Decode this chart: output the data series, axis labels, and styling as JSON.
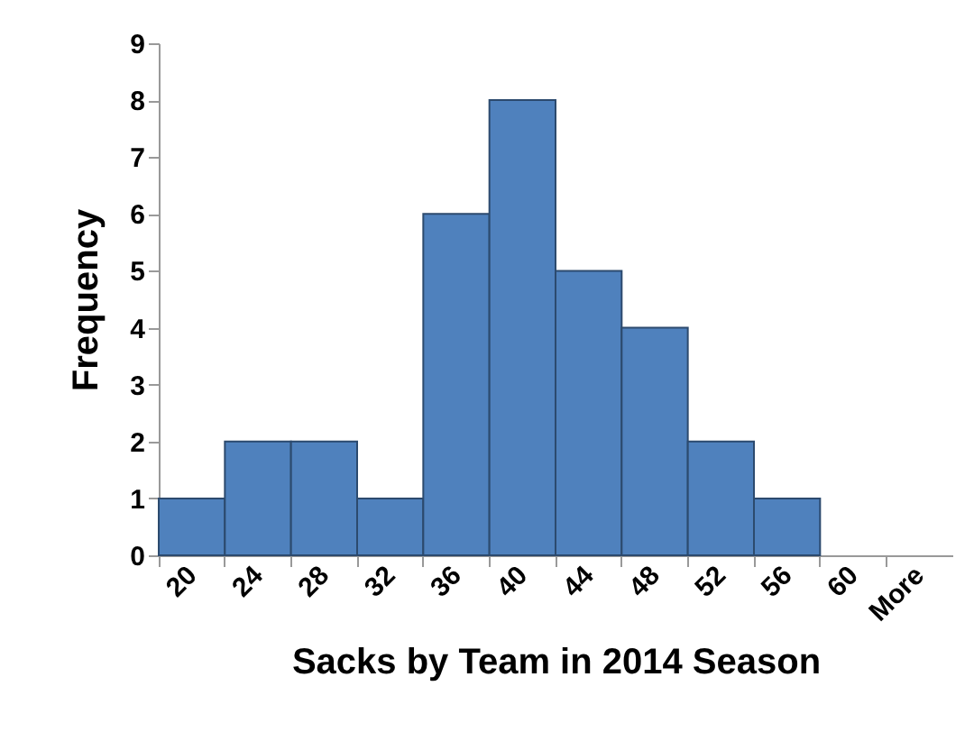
{
  "chart_data": {
    "type": "bar",
    "categories": [
      "20",
      "24",
      "28",
      "32",
      "36",
      "40",
      "44",
      "48",
      "52",
      "56",
      "60",
      "More"
    ],
    "values": [
      1,
      2,
      2,
      1,
      6,
      8,
      5,
      4,
      2,
      1,
      0,
      0
    ],
    "color": "#4f81bd",
    "xlabel": "Sacks by Team in 2014 Season",
    "ylabel": "Frequency",
    "ylim": [
      0,
      9
    ],
    "yticks": [
      0,
      1,
      2,
      3,
      4,
      5,
      6,
      7,
      8,
      9
    ],
    "grid": false
  }
}
